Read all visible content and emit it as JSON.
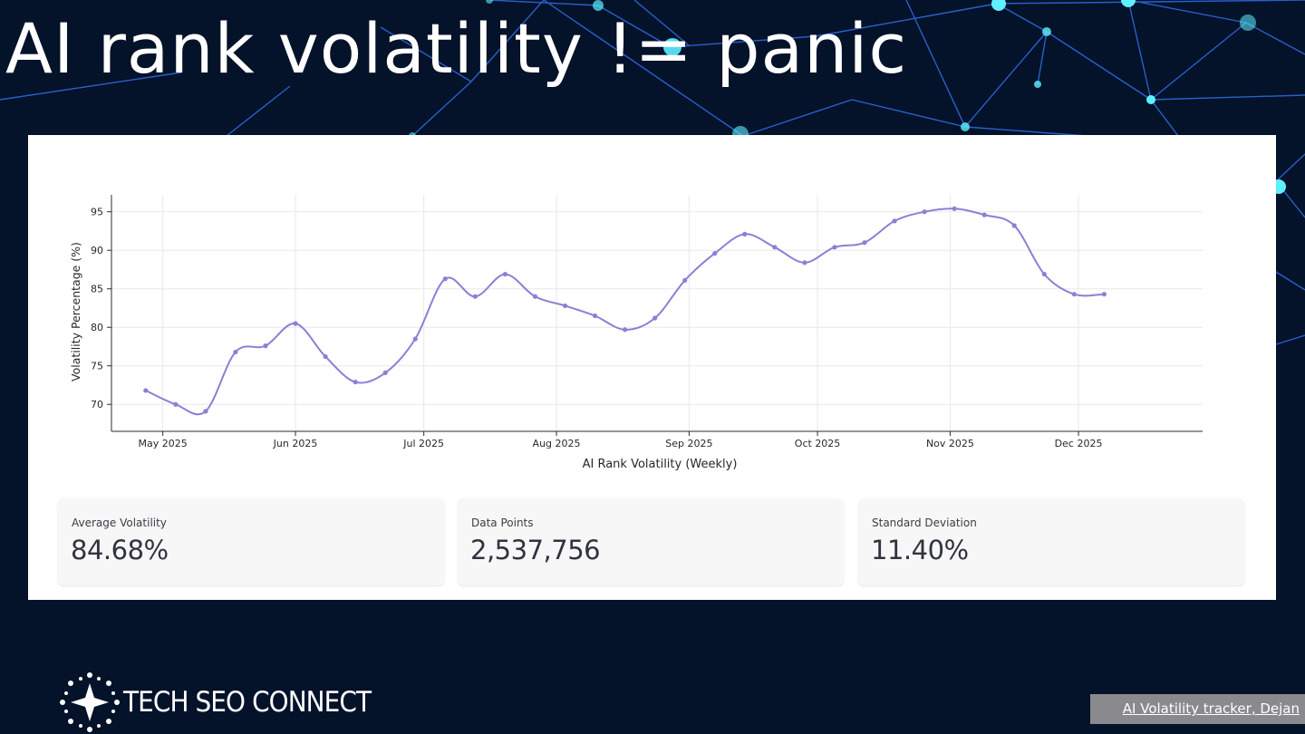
{
  "slide": {
    "title": "AI rank volatility != panic"
  },
  "metrics": [
    {
      "label": "Average Volatility",
      "value": "84.68%"
    },
    {
      "label": "Data Points",
      "value": "2,537,756"
    },
    {
      "label": "Standard Deviation",
      "value": "11.40%"
    }
  ],
  "footer": {
    "logo_text": "TECH SEO CONNECT",
    "credit_link": "AI Volatility tracker, Dejan"
  },
  "colors": {
    "background": "#04122a",
    "line": "#8a80d6",
    "network_glow": "#5ff0ff"
  },
  "chart_data": {
    "type": "line",
    "title": "",
    "xlabel": "AI Rank Volatility (Weekly)",
    "ylabel": "Volatility Percentage (%)",
    "ylim": [
      66.5,
      97.2
    ],
    "yticks": [
      70,
      75,
      80,
      85,
      90,
      95
    ],
    "xlim": [
      "2025-04-19",
      "2025-12-30"
    ],
    "xticks": [
      "2025-05-01",
      "2025-06-01",
      "2025-07-01",
      "2025-08-01",
      "2025-09-01",
      "2025-10-01",
      "2025-11-01",
      "2025-12-01"
    ],
    "xtick_labels": [
      "May 2025",
      "Jun 2025",
      "Jul 2025",
      "Aug 2025",
      "Sep 2025",
      "Oct 2025",
      "Nov 2025",
      "Dec 2025"
    ],
    "grid": true,
    "series": [
      {
        "x": [
          "2025-04-27",
          "2025-05-04",
          "2025-05-11",
          "2025-05-18",
          "2025-05-25",
          "2025-06-01",
          "2025-06-08",
          "2025-06-15",
          "2025-06-22",
          "2025-06-29",
          "2025-07-06",
          "2025-07-13",
          "2025-07-20",
          "2025-07-27",
          "2025-08-03",
          "2025-08-10",
          "2025-08-17",
          "2025-08-24",
          "2025-08-31",
          "2025-09-07",
          "2025-09-14",
          "2025-09-21",
          "2025-09-28",
          "2025-10-05",
          "2025-10-12",
          "2025-10-19",
          "2025-10-26",
          "2025-11-02",
          "2025-11-09",
          "2025-11-16",
          "2025-11-23",
          "2025-11-30",
          "2025-12-07"
        ],
        "values": [
          71.8,
          70.0,
          69.1,
          76.8,
          77.6,
          80.5,
          76.2,
          72.9,
          74.1,
          78.5,
          86.3,
          84.0,
          86.9,
          84.0,
          82.8,
          81.5,
          79.7,
          81.2,
          86.1,
          89.6,
          92.1,
          90.4,
          88.4,
          90.4,
          91.0,
          93.8,
          95.0,
          95.4,
          94.6,
          93.2,
          86.9,
          84.3,
          84.3
        ]
      }
    ]
  }
}
